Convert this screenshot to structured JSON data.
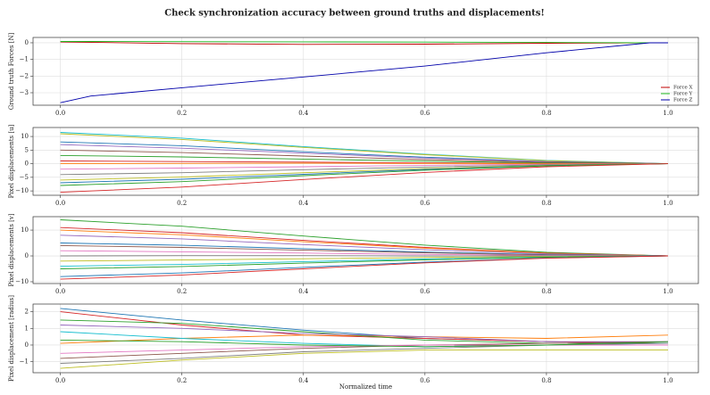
{
  "chart_data": [
    {
      "type": "line",
      "title": "Check synchronization accuracy between ground truths and displacements!",
      "ylabel": "Ground truth Forces [N]",
      "legend": "lower right",
      "grid": true,
      "x": [
        0,
        0.05,
        0.2,
        0.4,
        0.6,
        0.8,
        0.97,
        1.0
      ],
      "xlim": [
        -0.045,
        1.05
      ],
      "xticks": [
        {
          "value": 0,
          "label": "0.0"
        },
        {
          "value": 0.2,
          "label": "0.2"
        },
        {
          "value": 0.4,
          "label": "0.4"
        },
        {
          "value": 0.6,
          "label": "0.6"
        },
        {
          "value": 0.8,
          "label": "0.8"
        },
        {
          "value": 1,
          "label": "1.0"
        }
      ],
      "ylim": [
        -3.75,
        0.32
      ],
      "yticks": [
        {
          "value": -3,
          "label": "−3"
        },
        {
          "value": -2,
          "label": "−2"
        },
        {
          "value": -1,
          "label": "−1"
        },
        0
      ],
      "series": [
        {
          "name": "Force X",
          "color": "#c00000",
          "values": [
            0.05,
            0.03,
            -0.05,
            -0.1,
            -0.08,
            -0.03,
            0,
            0
          ]
        },
        {
          "name": "Force Y",
          "color": "#22bb22",
          "values": [
            0.08,
            0.08,
            0.07,
            0.06,
            0.04,
            0.02,
            0,
            0
          ]
        },
        {
          "name": "Force Z",
          "color": "#0000aa",
          "values": [
            -3.6,
            -3.2,
            -2.7,
            -2.05,
            -1.4,
            -0.6,
            0,
            0
          ]
        }
      ]
    },
    {
      "type": "line",
      "ylabel": "Pixel displacements [u]",
      "grid": true,
      "x": [
        0,
        0.2,
        0.4,
        0.6,
        0.8,
        1.0
      ],
      "xlim": [
        -0.045,
        1.05
      ],
      "xticks": [
        {
          "value": 0,
          "label": "0.0"
        },
        {
          "value": 0.2,
          "label": "0.2"
        },
        {
          "value": 0.4,
          "label": "0.4"
        },
        {
          "value": 0.6,
          "label": "0.6"
        },
        {
          "value": 0.8,
          "label": "0.8"
        },
        {
          "value": 1,
          "label": "1.0"
        }
      ],
      "ylim": [
        -11.6,
        13.3
      ],
      "yticks": [
        {
          "value": -10,
          "label": "−10"
        },
        {
          "value": -5,
          "label": "−5"
        },
        0,
        5,
        10
      ],
      "series": [
        {
          "color": "#17becf",
          "values": [
            11.5,
            9.4,
            6.3,
            3.5,
            1.2,
            0
          ]
        },
        {
          "color": "#bcbd22",
          "values": [
            11,
            8.9,
            6,
            3.3,
            1.1,
            0
          ]
        },
        {
          "color": "#1f77b4",
          "values": [
            8,
            6.6,
            4.4,
            2.4,
            0.8,
            0
          ]
        },
        {
          "color": "#9467bd",
          "values": [
            7,
            5.7,
            3.9,
            2.1,
            0.7,
            0
          ]
        },
        {
          "color": "#8c564b",
          "values": [
            5,
            4.1,
            2.8,
            1.5,
            0.5,
            0
          ]
        },
        {
          "color": "#2ca02c",
          "values": [
            3,
            2.5,
            1.7,
            0.9,
            0.3,
            0
          ]
        },
        {
          "color": "#d62728",
          "values": [
            1,
            0.8,
            0.6,
            0.3,
            0.1,
            0
          ]
        },
        {
          "color": "#ff7f0e",
          "values": [
            0,
            0.1,
            0.2,
            0.1,
            0,
            0
          ]
        },
        {
          "color": "#e377c2",
          "values": [
            -2,
            -1.6,
            -1.1,
            -0.6,
            -0.2,
            0
          ]
        },
        {
          "color": "#7f7f7f",
          "values": [
            -4,
            -3.3,
            -2.2,
            -1.2,
            -0.4,
            0
          ]
        },
        {
          "color": "#bcbd22",
          "values": [
            -6,
            -4.9,
            -3.3,
            -1.8,
            -0.6,
            0
          ]
        },
        {
          "color": "#1f77b4",
          "values": [
            -7,
            -5.7,
            -3.9,
            -2.1,
            -0.7,
            0
          ]
        },
        {
          "color": "#2ca02c",
          "values": [
            -8,
            -6.6,
            -4.4,
            -2.4,
            -0.8,
            0
          ]
        },
        {
          "color": "#d62728",
          "values": [
            -10.5,
            -8.6,
            -5.8,
            -3.2,
            -1.1,
            0
          ]
        }
      ]
    },
    {
      "type": "line",
      "ylabel": "Pixel displacements [v]",
      "grid": true,
      "x": [
        0,
        0.2,
        0.4,
        0.6,
        0.8,
        1.0
      ],
      "xlim": [
        -0.045,
        1.05
      ],
      "xticks": [
        {
          "value": 0,
          "label": "0.0"
        },
        {
          "value": 0.2,
          "label": "0.2"
        },
        {
          "value": 0.4,
          "label": "0.4"
        },
        {
          "value": 0.6,
          "label": "0.6"
        },
        {
          "value": 0.8,
          "label": "0.8"
        },
        {
          "value": 1,
          "label": "1.0"
        }
      ],
      "ylim": [
        -10.7,
        15.2
      ],
      "yticks": [
        {
          "value": -10,
          "label": "−10"
        },
        0,
        10
      ],
      "series": [
        {
          "color": "#2ca02c",
          "values": [
            14,
            11.5,
            7.7,
            4.2,
            1.4,
            0
          ]
        },
        {
          "color": "#d62728",
          "values": [
            11,
            9,
            6,
            3.3,
            1.1,
            0
          ]
        },
        {
          "color": "#ff7f0e",
          "values": [
            10,
            8.2,
            5.5,
            3,
            1,
            0
          ]
        },
        {
          "color": "#9467bd",
          "values": [
            8,
            6.6,
            4.4,
            2.4,
            0.8,
            0
          ]
        },
        {
          "color": "#1f77b4",
          "values": [
            5,
            4.1,
            2.8,
            1.5,
            0.5,
            0
          ]
        },
        {
          "color": "#8c564b",
          "values": [
            4,
            3.3,
            2.2,
            1.2,
            0.4,
            0
          ]
        },
        {
          "color": "#e377c2",
          "values": [
            2,
            1.6,
            1.1,
            0.6,
            0.2,
            0
          ]
        },
        {
          "color": "#7f7f7f",
          "values": [
            0,
            0.1,
            0.1,
            0,
            0,
            0
          ]
        },
        {
          "color": "#bcbd22",
          "values": [
            -2,
            -1.6,
            -1.1,
            -0.6,
            -0.2,
            0
          ]
        },
        {
          "color": "#17becf",
          "values": [
            -4,
            -3.3,
            -2.2,
            -1.2,
            -0.4,
            0
          ]
        },
        {
          "color": "#2ca02c",
          "values": [
            -5,
            -4.1,
            -2.8,
            -1.5,
            -0.5,
            0
          ]
        },
        {
          "color": "#1f77b4",
          "values": [
            -8,
            -6.6,
            -4.4,
            -2.4,
            -0.8,
            0
          ]
        },
        {
          "color": "#d62728",
          "values": [
            -9,
            -7.4,
            -5,
            -2.7,
            -0.9,
            0
          ]
        }
      ]
    },
    {
      "type": "line",
      "ylabel": "Pixel displacement [radius]",
      "xlabel": "Normalized time",
      "grid": true,
      "x": [
        0,
        0.2,
        0.4,
        0.6,
        0.8,
        1.0
      ],
      "xlim": [
        -0.045,
        1.05
      ],
      "xticks": [
        {
          "value": 0,
          "label": "0.0"
        },
        {
          "value": 0.2,
          "label": "0.2"
        },
        {
          "value": 0.4,
          "label": "0.4"
        },
        {
          "value": 0.6,
          "label": "0.6"
        },
        {
          "value": 0.8,
          "label": "0.8"
        },
        {
          "value": 1,
          "label": "1.0"
        }
      ],
      "ylim": [
        -1.66,
        2.46
      ],
      "yticks": [
        {
          "value": -1,
          "label": "−1"
        },
        0,
        1,
        2
      ],
      "series": [
        {
          "color": "#1f77b4",
          "values": [
            2.2,
            1.5,
            0.9,
            0.4,
            0.2,
            0.1
          ]
        },
        {
          "color": "#d62728",
          "values": [
            2,
            1.2,
            0.6,
            0.4,
            0.2,
            0.1
          ]
        },
        {
          "color": "#ff7f0e",
          "values": [
            0.1,
            0.4,
            0.6,
            0.5,
            0.4,
            0.6
          ]
        },
        {
          "color": "#2ca02c",
          "values": [
            1.5,
            1.3,
            0.8,
            0.3,
            0.1,
            0.1
          ]
        },
        {
          "color": "#9467bd",
          "values": [
            1.2,
            1,
            0.7,
            0.5,
            0.2,
            0.2
          ]
        },
        {
          "color": "#17becf",
          "values": [
            0.8,
            0.4,
            0.1,
            -0.1,
            0,
            0.1
          ]
        },
        {
          "color": "#8c564b",
          "values": [
            -0.8,
            -0.5,
            -0.2,
            0,
            0.1,
            0.2
          ]
        },
        {
          "color": "#e377c2",
          "values": [
            -0.5,
            -0.3,
            -0.1,
            0,
            0,
            0
          ]
        },
        {
          "color": "#7f7f7f",
          "values": [
            -1.1,
            -0.8,
            -0.4,
            -0.2,
            0,
            0.1
          ]
        },
        {
          "color": "#bcbd22",
          "values": [
            -1.4,
            -0.9,
            -0.5,
            -0.3,
            -0.3,
            -0.3
          ]
        },
        {
          "color": "#2ca02c",
          "values": [
            0.3,
            0.2,
            0,
            -0.1,
            0,
            0.2
          ]
        }
      ]
    }
  ]
}
